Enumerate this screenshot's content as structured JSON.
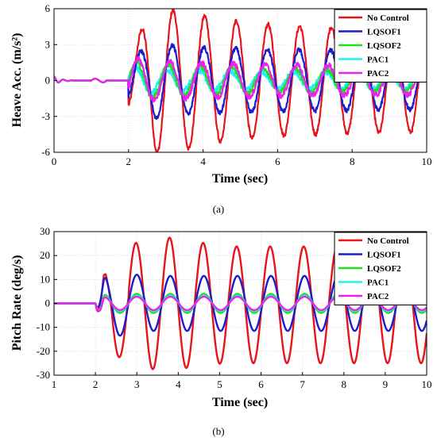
{
  "chart_data": [
    {
      "type": "line",
      "caption": "(a)",
      "xlabel": "Time (sec)",
      "ylabel": "Heave Acc. (m/s²)",
      "xlim": [
        0,
        10
      ],
      "ylim": [
        -6,
        6
      ],
      "xticks": [
        0,
        2,
        4,
        6,
        8,
        10
      ],
      "yticks": [
        -6,
        -3,
        0,
        3,
        6
      ],
      "grid": true,
      "legend_position": "top-right",
      "colors": {
        "No Control": "#e8141b",
        "LQSOF1": "#1c1ccf",
        "LQSOF2": "#22dd22",
        "PAC1": "#22f0f0",
        "PAC2": "#ee22ee"
      },
      "disturbance_onset_sec": 2.0,
      "oscillation_period_sec": 0.85,
      "series": [
        {
          "name": "No Control",
          "amplitude_envelope": [
            [
              2.0,
              2.5
            ],
            [
              2.7,
              6.0
            ],
            [
              3.5,
              5.8
            ],
            [
              4.3,
              5.2
            ],
            [
              6.0,
              4.6
            ],
            [
              8.0,
              4.4
            ],
            [
              10.0,
              4.3
            ]
          ]
        },
        {
          "name": "LQSOF1",
          "amplitude_envelope": [
            [
              2.0,
              1.8
            ],
            [
              2.7,
              3.2
            ],
            [
              3.5,
              2.8
            ],
            [
              6.0,
              2.6
            ],
            [
              10.0,
              2.4
            ]
          ]
        },
        {
          "name": "LQSOF2",
          "amplitude_envelope": [
            [
              2.0,
              1.6
            ],
            [
              2.7,
              1.4
            ],
            [
              6.0,
              1.0
            ],
            [
              10.0,
              0.9
            ]
          ]
        },
        {
          "name": "PAC1",
          "amplitude_envelope": [
            [
              2.0,
              1.3
            ],
            [
              2.7,
              0.9
            ],
            [
              6.0,
              0.7
            ],
            [
              10.0,
              0.7
            ]
          ]
        },
        {
          "name": "PAC2",
          "amplitude_envelope": [
            [
              2.0,
              1.9
            ],
            [
              2.7,
              1.6
            ],
            [
              6.0,
              1.3
            ],
            [
              10.0,
              1.2
            ]
          ]
        }
      ]
    },
    {
      "type": "line",
      "caption": "(b)",
      "xlabel": "Time (sec)",
      "ylabel": "Pitch Rate (deg/s)",
      "xlim": [
        1,
        10
      ],
      "ylim": [
        -30,
        30
      ],
      "xticks": [
        1,
        2,
        3,
        4,
        5,
        6,
        7,
        8,
        9,
        10
      ],
      "yticks": [
        -30,
        -20,
        -10,
        0,
        10,
        20,
        30
      ],
      "grid": true,
      "legend_position": "top-right",
      "colors": {
        "No Control": "#e8141b",
        "LQSOF1": "#1c1ccf",
        "LQSOF2": "#22dd22",
        "PAC1": "#22f0f0",
        "PAC2": "#ee22ee"
      },
      "disturbance_onset_sec": 2.0,
      "oscillation_period_sec": 0.81,
      "series": [
        {
          "name": "No Control",
          "peaks": [
            14.8,
            25.3,
            27.5,
            25.3,
            23.8,
            23.8,
            23.8
          ],
          "troughs": [
            -22.5,
            -27.5,
            -27.0,
            -25.2,
            -25.0,
            -25.0,
            -25.0,
            -25.0
          ]
        },
        {
          "name": "LQSOF1",
          "peaks": [
            12.0,
            12.0,
            11.5,
            11.5,
            11.5,
            11.5,
            11.5
          ],
          "troughs": [
            -13.5,
            -11.5,
            -11.5,
            -11.5,
            -11.5,
            -11.5,
            -11.5,
            -11.5
          ]
        },
        {
          "name": "LQSOF2",
          "peaks": [
            4.0,
            4.0,
            4.0,
            4.0,
            4.0,
            4.0,
            4.0
          ],
          "troughs": [
            -4.0,
            -4.0,
            -4.0,
            -4.0,
            -4.0,
            -4.0,
            -4.0,
            -4.0
          ]
        },
        {
          "name": "PAC1",
          "peaks": [
            3.2,
            3.2,
            3.2,
            3.2,
            3.2,
            3.2,
            3.2
          ],
          "troughs": [
            -3.2,
            -3.2,
            -3.2,
            -3.2,
            -3.2,
            -3.2,
            -3.2,
            -3.2
          ]
        },
        {
          "name": "PAC2",
          "peaks": [
            2.8,
            2.8,
            2.8,
            2.8,
            2.8,
            2.8,
            2.8
          ],
          "troughs": [
            -2.8,
            -2.8,
            -2.8,
            -2.8,
            -2.8,
            -2.8,
            -2.8,
            -2.8
          ]
        }
      ]
    }
  ]
}
